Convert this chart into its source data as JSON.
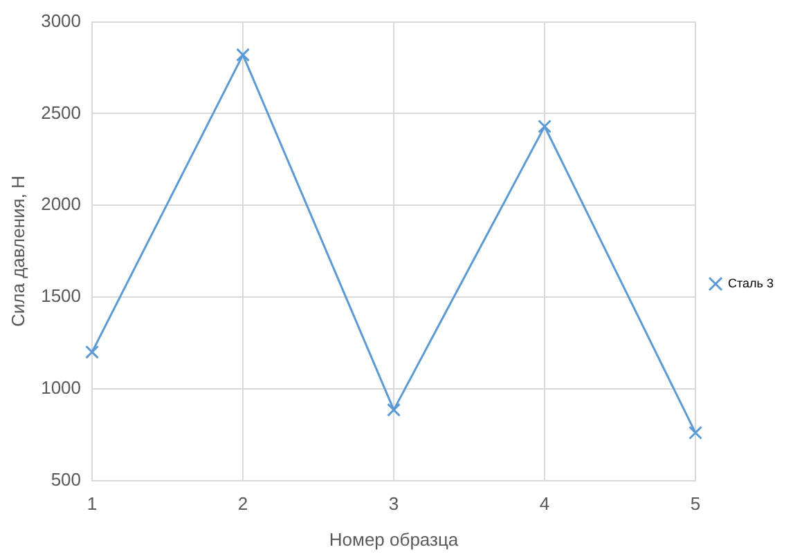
{
  "chart_data": {
    "type": "line",
    "xlabel": "Номер образца",
    "ylabel": "Сила давления, Н",
    "x": [
      1,
      2,
      3,
      4,
      5
    ],
    "series": [
      {
        "name": "Сталь 3",
        "color": "#5b9bd5",
        "values": [
          1200,
          2820,
          885,
          2430,
          760
        ]
      }
    ],
    "xlim": [
      1,
      5
    ],
    "xticks": [
      1,
      2,
      3,
      4,
      5
    ],
    "ylim": [
      500,
      3000
    ],
    "yticks": [
      500,
      1000,
      1500,
      2000,
      2500,
      3000
    ],
    "grid": true,
    "legend": "right",
    "marker": "cross",
    "line_style": "solid"
  }
}
